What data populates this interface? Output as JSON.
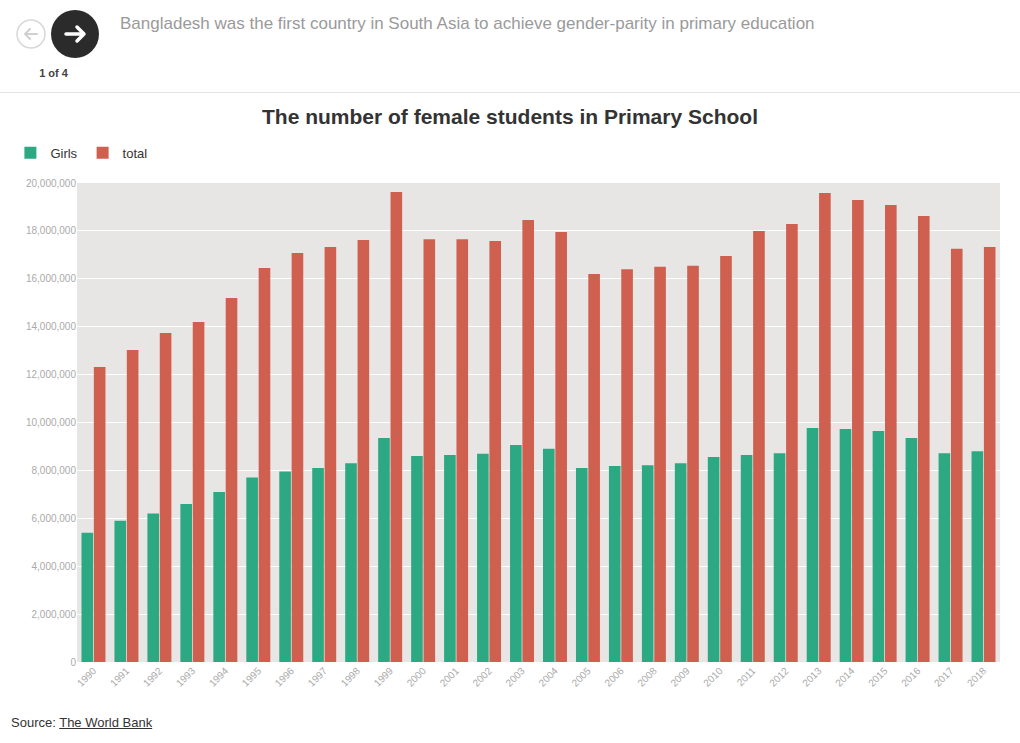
{
  "header": {
    "text": "Bangladesh was the first country in South Asia to achieve gender-parity in primary education",
    "page": "1 of 4"
  },
  "footer": {
    "label": "Source:",
    "link": "The World Bank"
  },
  "chart_data": {
    "type": "bar",
    "title": "The number of female students in Primary School",
    "categories": [
      "1990",
      "1991",
      "1992",
      "1993",
      "1994",
      "1995",
      "1996",
      "1997",
      "1998",
      "1999",
      "2000",
      "2001",
      "2002",
      "2003",
      "2004",
      "2005",
      "2006",
      "2008",
      "2009",
      "2010",
      "2011",
      "2012",
      "2013",
      "2014",
      "2015",
      "2016",
      "2017",
      "2018"
    ],
    "series": [
      {
        "name": "Girls",
        "color": "#2ca882",
        "values": [
          5400000,
          5900000,
          6200000,
          6600000,
          7100000,
          7700000,
          7950000,
          8100000,
          8300000,
          9350000,
          8600000,
          8640000,
          8700000,
          9060000,
          8900000,
          8100000,
          8180000,
          8220000,
          8300000,
          8560000,
          8640000,
          8720000,
          9770000,
          9730000,
          9650000,
          9350000,
          8720000,
          8800000
        ]
      },
      {
        "name": "total",
        "color": "#cf5f4f",
        "values": [
          12320000,
          13030000,
          13740000,
          14200000,
          15200000,
          16450000,
          17080000,
          17330000,
          17620000,
          19620000,
          17650000,
          17650000,
          17580000,
          18450000,
          17950000,
          16200000,
          16400000,
          16500000,
          16550000,
          16950000,
          18000000,
          18290000,
          19580000,
          19290000,
          19080000,
          18620000,
          17250000,
          17330000
        ]
      }
    ],
    "ylim": [
      0,
      20000000
    ],
    "yticks": [
      0,
      {
        "value": 2000000,
        "label": "2,000,000"
      },
      {
        "value": 4000000,
        "label": "4,000,000"
      },
      {
        "value": 6000000,
        "label": "6,000,000"
      },
      {
        "value": 8000000,
        "label": "8,000,000"
      },
      {
        "value": 10000000,
        "label": "10,000,000"
      },
      {
        "value": 12000000,
        "label": "12,000,000"
      },
      {
        "value": 14000000,
        "label": "14,000,000"
      },
      {
        "value": 16000000,
        "label": "16,000,000"
      },
      {
        "value": 18000000,
        "label": "18,000,000"
      },
      {
        "value": 20000000,
        "label": "20,000,000"
      }
    ],
    "grid": true,
    "legend": "top left"
  }
}
